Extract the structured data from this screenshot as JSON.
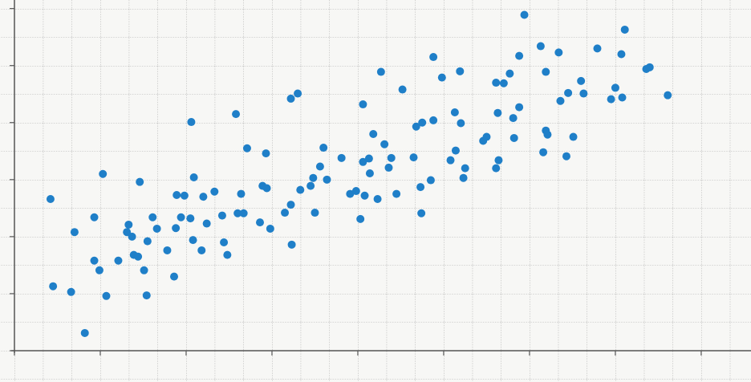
{
  "chart_data": {
    "type": "scatter",
    "color": "#1f7fc8",
    "xlim": [
      0,
      8.58
    ],
    "ylim": [
      0,
      6.15
    ],
    "xticks": [
      0,
      1,
      2,
      3,
      4,
      5,
      6,
      7,
      8
    ],
    "yticks": [
      0,
      1,
      2,
      3,
      4,
      5,
      6
    ],
    "x": [
      0.42,
      0.45,
      0.66,
      0.7,
      0.82,
      0.93,
      0.93,
      0.99,
      1.03,
      1.07,
      1.21,
      1.31,
      1.33,
      1.37,
      1.39,
      1.44,
      1.46,
      1.51,
      1.54,
      1.55,
      1.61,
      1.66,
      1.78,
      1.86,
      1.88,
      1.89,
      1.94,
      1.98,
      2.05,
      2.06,
      2.08,
      2.09,
      2.18,
      2.2,
      2.24,
      2.33,
      2.42,
      2.44,
      2.48,
      2.58,
      2.6,
      2.64,
      2.67,
      2.71,
      2.86,
      2.89,
      2.93,
      2.94,
      2.98,
      3.15,
      3.22,
      3.22,
      3.23,
      3.3,
      3.33,
      3.45,
      3.48,
      3.5,
      3.56,
      3.6,
      3.64,
      3.81,
      3.91,
      3.98,
      4.03,
      4.06,
      4.06,
      4.08,
      4.13,
      4.14,
      4.18,
      4.23,
      4.27,
      4.31,
      4.36,
      4.39,
      4.45,
      4.52,
      4.65,
      4.68,
      4.73,
      4.74,
      4.75,
      4.85,
      4.88,
      4.88,
      4.98,
      5.08,
      5.13,
      5.14,
      5.19,
      5.2,
      5.23,
      5.25,
      5.46,
      5.5,
      5.61,
      5.61,
      5.63,
      5.64,
      5.7,
      5.77,
      5.81,
      5.82,
      5.88,
      5.88,
      5.94,
      6.13,
      6.16,
      6.19,
      6.19,
      6.21,
      6.34,
      6.36,
      6.43,
      6.45,
      6.51,
      6.6,
      6.63,
      6.79,
      6.95,
      7.0,
      7.07,
      7.08,
      7.11,
      7.36,
      7.4,
      7.61
    ],
    "values": [
      2.66,
      1.13,
      1.03,
      2.08,
      0.31,
      1.58,
      2.34,
      1.41,
      3.1,
      0.96,
      1.58,
      2.08,
      2.21,
      2.0,
      1.68,
      1.65,
      2.96,
      1.41,
      0.97,
      1.92,
      2.34,
      2.14,
      1.76,
      1.3,
      2.15,
      2.73,
      2.34,
      2.72,
      2.32,
      4.01,
      1.94,
      3.04,
      1.76,
      2.7,
      2.23,
      2.79,
      2.37,
      1.9,
      1.68,
      4.15,
      2.41,
      2.75,
      2.41,
      3.55,
      2.25,
      2.89,
      3.46,
      2.85,
      2.14,
      2.42,
      4.42,
      2.56,
      1.86,
      4.51,
      2.82,
      2.89,
      3.03,
      2.42,
      3.23,
      3.56,
      3.0,
      3.38,
      2.75,
      2.8,
      2.31,
      4.32,
      3.31,
      2.72,
      3.37,
      3.11,
      3.8,
      2.66,
      4.89,
      3.62,
      3.21,
      3.38,
      2.75,
      4.58,
      3.39,
      3.93,
      2.87,
      2.41,
      4.0,
      2.99,
      5.15,
      4.04,
      4.79,
      3.34,
      4.18,
      3.51,
      4.9,
      3.99,
      3.03,
      3.2,
      3.68,
      3.75,
      4.7,
      3.2,
      4.17,
      3.34,
      4.69,
      4.86,
      4.08,
      3.73,
      4.27,
      5.17,
      5.89,
      5.34,
      3.48,
      4.89,
      3.86,
      3.79,
      5.23,
      4.38,
      3.41,
      4.52,
      3.75,
      4.73,
      4.51,
      5.3,
      4.41,
      4.61,
      5.2,
      4.44,
      5.63,
      4.94,
      4.97,
      4.48
    ]
  }
}
